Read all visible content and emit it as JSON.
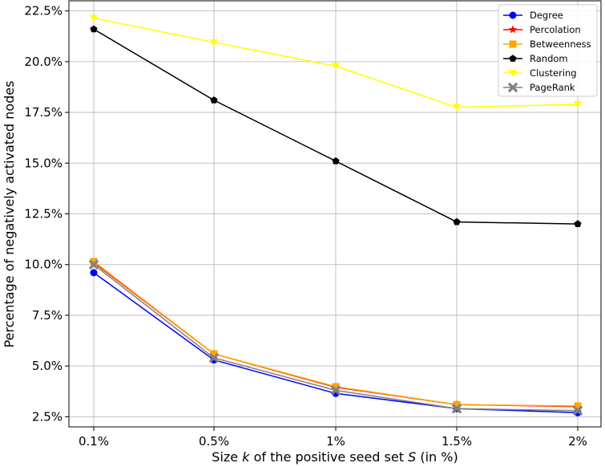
{
  "chart_data": {
    "type": "line",
    "title": "",
    "xlabel_parts": {
      "prefix": "Size ",
      "k": "k",
      "middle": " of the positive seed set ",
      "s": "S",
      "suffix": " (in %)"
    },
    "ylabel": "Percentage of negatively activated nodes",
    "categories": [
      "0.1%",
      "0.5%",
      "1%",
      "1.5%",
      "2%"
    ],
    "ylim": [
      0.02,
      0.23
    ],
    "yticks": [
      0.025,
      0.05,
      0.075,
      0.1,
      0.125,
      0.15,
      0.175,
      0.2,
      0.225
    ],
    "ytick_labels": [
      "2.5%",
      "5.0%",
      "7.5%",
      "10.0%",
      "12.5%",
      "15.0%",
      "17.5%",
      "20.0%",
      "22.5%"
    ],
    "grid": true,
    "legend_position": "top-right",
    "series": [
      {
        "name": "Degree",
        "color": "#0000ff",
        "marker": "circle",
        "values": [
          0.096,
          0.053,
          0.0365,
          0.029,
          0.027
        ]
      },
      {
        "name": "Percolation",
        "color": "#ff0000",
        "marker": "star",
        "values": [
          0.101,
          0.056,
          0.0395,
          0.031,
          0.03
        ]
      },
      {
        "name": "Betweenness",
        "color": "#ffa500",
        "marker": "square",
        "values": [
          0.1015,
          0.056,
          0.0398,
          0.031,
          0.0303
        ]
      },
      {
        "name": "Random",
        "color": "#000000",
        "marker": "pentagon",
        "values": [
          0.216,
          0.181,
          0.151,
          0.121,
          0.12
        ]
      },
      {
        "name": "Clustering",
        "color": "#ffff00",
        "marker": "triangle-down",
        "values": [
          0.2215,
          0.2095,
          0.1978,
          0.1775,
          0.179
        ]
      },
      {
        "name": "PageRank",
        "color": "#808080",
        "marker": "x",
        "values": [
          0.1,
          0.054,
          0.038,
          0.029,
          0.028
        ]
      }
    ]
  }
}
